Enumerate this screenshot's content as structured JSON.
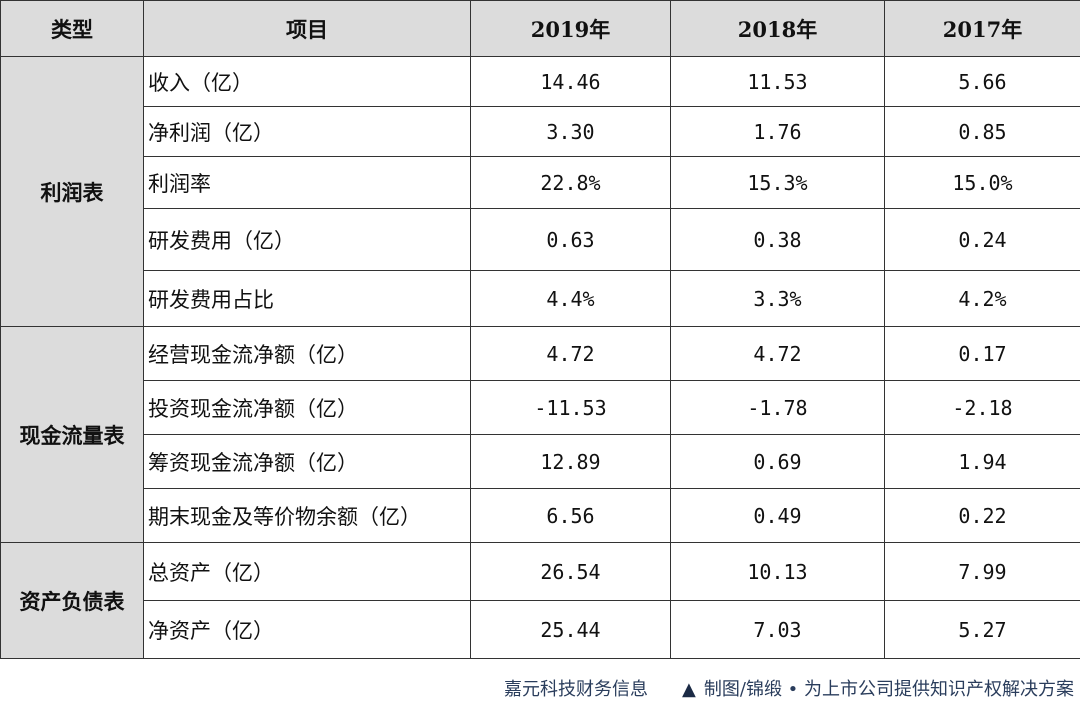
{
  "table": {
    "headers": [
      "类型",
      "项目",
      "2019年",
      "2018年",
      "2017年"
    ],
    "groups": [
      {
        "category": "利润表",
        "rows": [
          {
            "item": "收入（亿）",
            "values": [
              "14.46",
              "11.53",
              "5.66"
            ]
          },
          {
            "item": "净利润（亿）",
            "values": [
              "3.30",
              "1.76",
              "0.85"
            ]
          },
          {
            "item": "利润率",
            "values": [
              "22.8%",
              "15.3%",
              "15.0%"
            ]
          },
          {
            "item": "研发费用（亿）",
            "values": [
              "0.63",
              "0.38",
              "0.24"
            ]
          },
          {
            "item": "研发费用占比",
            "values": [
              "4.4%",
              "3.3%",
              "4.2%"
            ]
          }
        ]
      },
      {
        "category": "现金流量表",
        "rows": [
          {
            "item": "经营现金流净额（亿）",
            "values": [
              "4.72",
              "4.72",
              "0.17"
            ]
          },
          {
            "item": "投资现金流净额（亿）",
            "values": [
              "-11.53",
              "-1.78",
              "-2.18"
            ]
          },
          {
            "item": "筹资现金流净额（亿）",
            "values": [
              "12.89",
              "0.69",
              "1.94"
            ]
          },
          {
            "item": "期末现金及等价物余额（亿）",
            "values": [
              "6.56",
              "0.49",
              "0.22"
            ]
          }
        ]
      },
      {
        "category": "资产负债表",
        "rows": [
          {
            "item": "总资产（亿）",
            "values": [
              "26.54",
              "10.13",
              "7.99"
            ]
          },
          {
            "item": "净资产（亿）",
            "values": [
              "25.44",
              "7.03",
              "5.27"
            ]
          }
        ]
      }
    ]
  },
  "footer": {
    "source": "嘉元科技财务信息",
    "triangle": "▲",
    "credit": "制图/锦缎 • 为上市公司提供知识产权解决方案"
  },
  "colors": {
    "header_bg": "#dcdcdc",
    "footer_text": "#2a3d5c"
  }
}
